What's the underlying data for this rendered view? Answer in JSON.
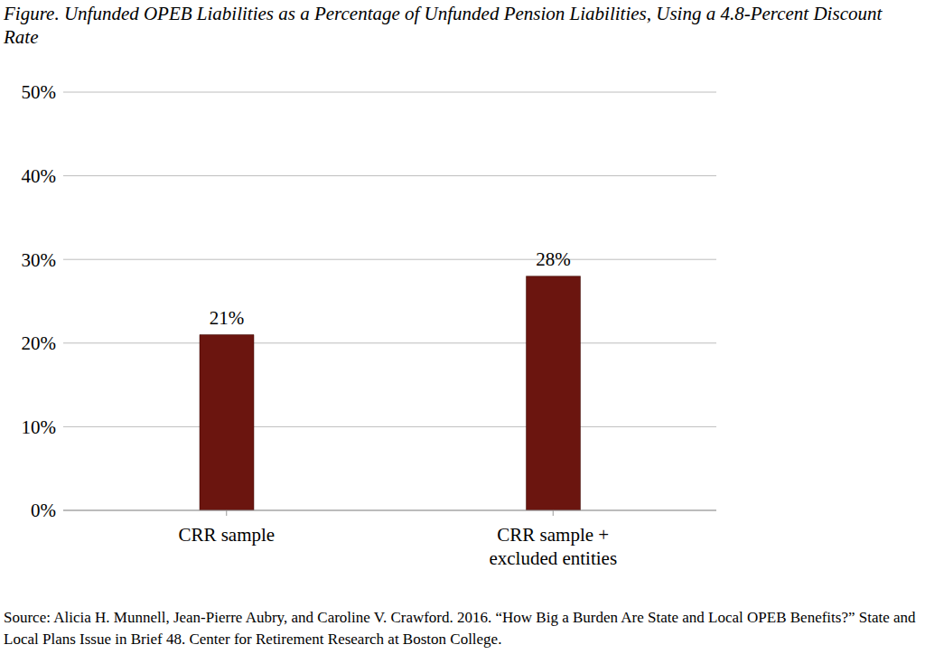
{
  "chart_data": {
    "type": "bar",
    "title": "Figure. Unfunded OPEB Liabilities as a Percentage of Unfunded Pension Liabilities, Using a 4.8-Percent Discount Rate",
    "categories": [
      "CRR sample",
      "CRR sample + excluded entities"
    ],
    "values": [
      21,
      28
    ],
    "value_labels": [
      "21%",
      "28%"
    ],
    "data_labels": true,
    "color": "#6b150f",
    "ylim": [
      0,
      50
    ],
    "yticks": [
      {
        "value": 0,
        "label": "0%"
      },
      {
        "value": 10,
        "label": "10%"
      },
      {
        "value": 20,
        "label": "20%"
      },
      {
        "value": 30,
        "label": "30%"
      },
      {
        "value": 40,
        "label": "40%"
      },
      {
        "value": 50,
        "label": "50%"
      }
    ],
    "grid": true,
    "source": "Source: Alicia H. Munnell, Jean-Pierre Aubry, and Caroline V. Crawford. 2016. “How Big a Burden Are State and Local OPEB Benefits?” State and Local Plans Issue in Brief 48. Center for Retirement Research at Boston College."
  }
}
